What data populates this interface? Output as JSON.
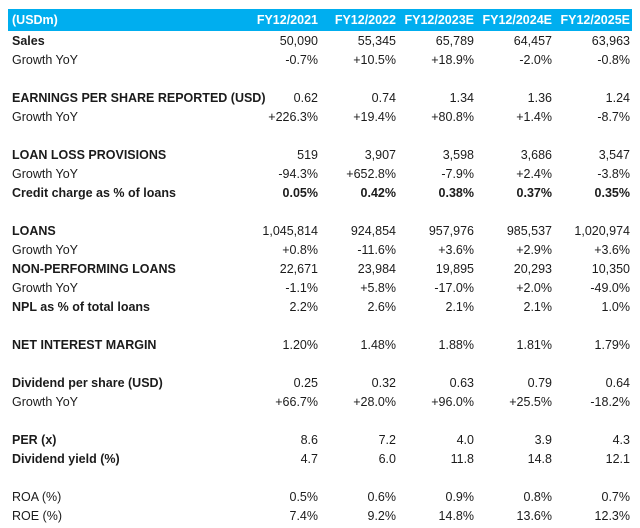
{
  "colors": {
    "header_bg": "#00AEEF",
    "header_text": "#FFFFFF",
    "text": "#1B1B1B",
    "background": "#FFFFFF"
  },
  "table": {
    "unit_label": "(USDm)",
    "columns": [
      "FY12/2021",
      "FY12/2022",
      "FY12/2023E",
      "FY12/2024E",
      "FY12/2025E"
    ],
    "rows": [
      {
        "type": "data",
        "label": "Sales",
        "bold_label": true,
        "bold_values": false,
        "values": [
          "50,090",
          "55,345",
          "65,789",
          "64,457",
          "63,963"
        ]
      },
      {
        "type": "data",
        "label": "Growth YoY",
        "bold_label": false,
        "bold_values": false,
        "values": [
          "-0.7%",
          "+10.5%",
          "+18.9%",
          "-2.0%",
          "-0.8%"
        ]
      },
      {
        "type": "spacer"
      },
      {
        "type": "data",
        "label": "EARNINGS PER SHARE REPORTED (USD)",
        "bold_label": true,
        "bold_values": false,
        "values": [
          "0.62",
          "0.74",
          "1.34",
          "1.36",
          "1.24"
        ]
      },
      {
        "type": "data",
        "label": "Growth YoY",
        "bold_label": false,
        "bold_values": false,
        "values": [
          "+226.3%",
          "+19.4%",
          "+80.8%",
          "+1.4%",
          "-8.7%"
        ]
      },
      {
        "type": "spacer"
      },
      {
        "type": "data",
        "label": "LOAN LOSS PROVISIONS",
        "bold_label": true,
        "bold_values": false,
        "values": [
          "519",
          "3,907",
          "3,598",
          "3,686",
          "3,547"
        ]
      },
      {
        "type": "data",
        "label": "Growth YoY",
        "bold_label": false,
        "bold_values": false,
        "values": [
          "-94.3%",
          "+652.8%",
          "-7.9%",
          "+2.4%",
          "-3.8%"
        ]
      },
      {
        "type": "data",
        "label": "Credit charge as % of loans",
        "bold_label": true,
        "bold_values": true,
        "values": [
          "0.05%",
          "0.42%",
          "0.38%",
          "0.37%",
          "0.35%"
        ]
      },
      {
        "type": "spacer"
      },
      {
        "type": "data",
        "label": "LOANS",
        "bold_label": true,
        "bold_values": false,
        "values": [
          "1,045,814",
          "924,854",
          "957,976",
          "985,537",
          "1,020,974"
        ]
      },
      {
        "type": "data",
        "label": "Growth YoY",
        "bold_label": false,
        "bold_values": false,
        "values": [
          "+0.8%",
          "-11.6%",
          "+3.6%",
          "+2.9%",
          "+3.6%"
        ]
      },
      {
        "type": "data",
        "label": "NON-PERFORMING LOANS",
        "bold_label": true,
        "bold_values": false,
        "values": [
          "22,671",
          "23,984",
          "19,895",
          "20,293",
          "10,350"
        ]
      },
      {
        "type": "data",
        "label": "Growth YoY",
        "bold_label": false,
        "bold_values": false,
        "values": [
          "-1.1%",
          "+5.8%",
          "-17.0%",
          "+2.0%",
          "-49.0%"
        ]
      },
      {
        "type": "data",
        "label": "NPL as % of total loans",
        "bold_label": true,
        "bold_values": false,
        "values": [
          "2.2%",
          "2.6%",
          "2.1%",
          "2.1%",
          "1.0%"
        ]
      },
      {
        "type": "spacer"
      },
      {
        "type": "data",
        "label": "NET INTEREST MARGIN",
        "bold_label": true,
        "bold_values": false,
        "values": [
          "1.20%",
          "1.48%",
          "1.88%",
          "1.81%",
          "1.79%"
        ]
      },
      {
        "type": "spacer"
      },
      {
        "type": "data",
        "label": "Dividend per share (USD)",
        "bold_label": true,
        "bold_values": false,
        "values": [
          "0.25",
          "0.32",
          "0.63",
          "0.79",
          "0.64"
        ]
      },
      {
        "type": "data",
        "label": "Growth YoY",
        "bold_label": false,
        "bold_values": false,
        "values": [
          "+66.7%",
          "+28.0%",
          "+96.0%",
          "+25.5%",
          "-18.2%"
        ]
      },
      {
        "type": "spacer"
      },
      {
        "type": "data",
        "label": "PER (x)",
        "bold_label": true,
        "bold_values": false,
        "values": [
          "8.6",
          "7.2",
          "4.0",
          "3.9",
          "4.3"
        ]
      },
      {
        "type": "data",
        "label": "Dividend yield (%)",
        "bold_label": true,
        "bold_values": false,
        "values": [
          "4.7",
          "6.0",
          "11.8",
          "14.8",
          "12.1"
        ]
      },
      {
        "type": "spacer"
      },
      {
        "type": "data",
        "label": "ROA (%)",
        "bold_label": false,
        "bold_values": false,
        "values": [
          "0.5%",
          "0.6%",
          "0.9%",
          "0.8%",
          "0.7%"
        ]
      },
      {
        "type": "data",
        "label": "ROE (%)",
        "bold_label": false,
        "bold_values": false,
        "values": [
          "7.4%",
          "9.2%",
          "14.8%",
          "13.6%",
          "12.3%"
        ]
      }
    ]
  }
}
